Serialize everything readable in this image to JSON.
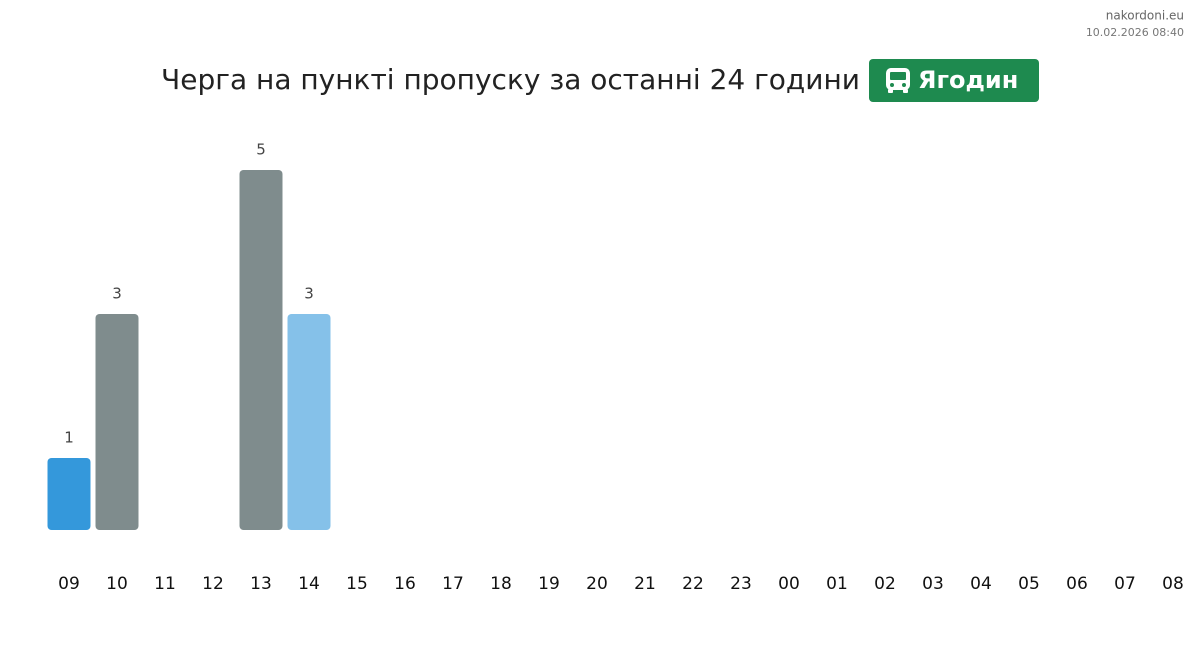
{
  "site": "nakordoni.eu",
  "timestamp": "10.02.2026 08:40",
  "chart_data": {
    "type": "bar",
    "title": "Черга на пункті пропуску за останні 24 години",
    "badge": "Ягодин",
    "categories": [
      "09",
      "10",
      "11",
      "12",
      "13",
      "14",
      "15",
      "16",
      "17",
      "18",
      "19",
      "20",
      "21",
      "22",
      "23",
      "00",
      "01",
      "02",
      "03",
      "04",
      "05",
      "06",
      "07",
      "08"
    ],
    "values": [
      1,
      3,
      null,
      null,
      5,
      3,
      null,
      null,
      null,
      null,
      null,
      null,
      null,
      null,
      null,
      null,
      null,
      null,
      null,
      null,
      null,
      null,
      null,
      null
    ],
    "colors": [
      "#3498db",
      "#7f8c8d",
      null,
      null,
      "#7f8c8d",
      "#85c1e9",
      null,
      null,
      null,
      null,
      null,
      null,
      null,
      null,
      null,
      null,
      null,
      null,
      null,
      null,
      null,
      null,
      null,
      null
    ]
  }
}
